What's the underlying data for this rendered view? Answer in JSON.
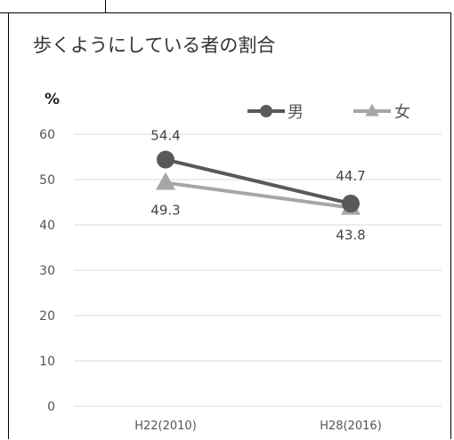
{
  "chart_data": {
    "type": "line",
    "title": "歩くようにしている者の割合",
    "ylabel": "%",
    "xlabel": "",
    "categories": [
      "H22(2010)",
      "H28(2016)"
    ],
    "series": [
      {
        "name": "男",
        "values": [
          54.4,
          44.7
        ],
        "color": "#595959",
        "marker": "circle"
      },
      {
        "name": "女",
        "values": [
          49.3,
          43.8
        ],
        "color": "#a6a6a6",
        "marker": "triangle"
      }
    ],
    "ylim": [
      0,
      60
    ],
    "yticks": [
      0,
      10,
      20,
      30,
      40,
      50,
      60
    ],
    "grid": true,
    "legend": "top-right"
  }
}
